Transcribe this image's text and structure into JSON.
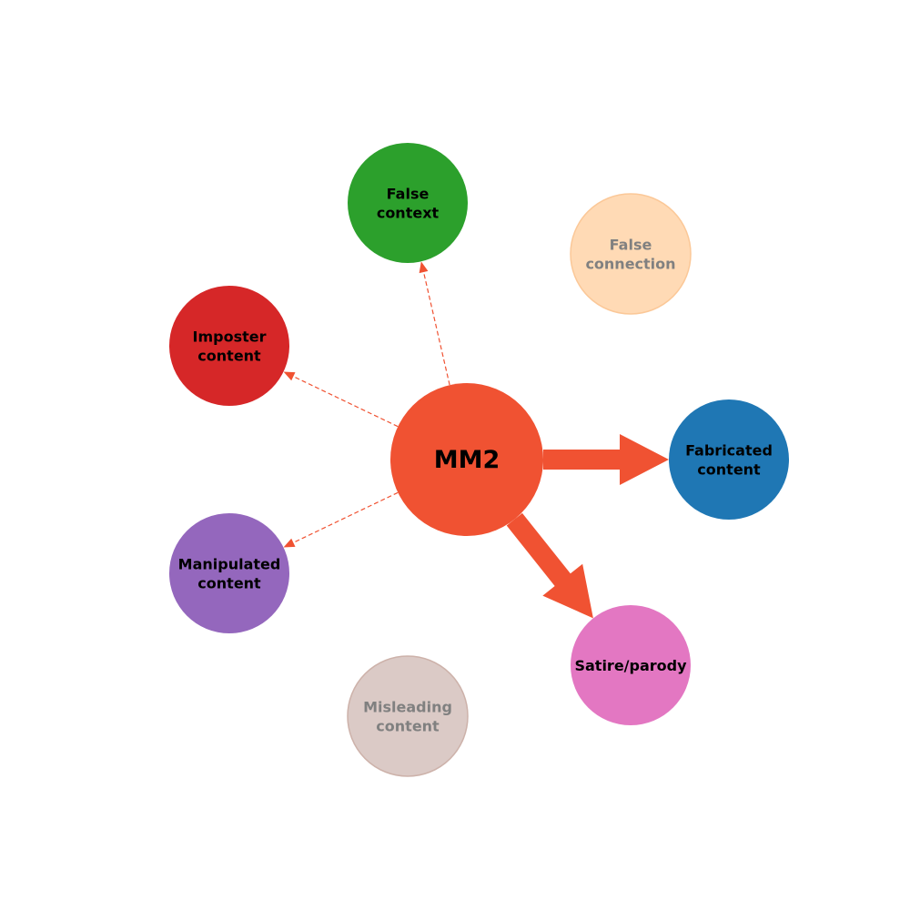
{
  "center": {
    "label": "MM2",
    "color": "#f05232"
  },
  "nodes": [
    {
      "id": "false-context",
      "lines": [
        "False",
        "context"
      ],
      "color": "#2ca02c",
      "text_color": "#000000",
      "faded": false
    },
    {
      "id": "false-connection",
      "lines": [
        "False",
        "connection"
      ],
      "color": "#ffdab5",
      "stroke": "#fbc898",
      "text_color": "#808080",
      "faded": true
    },
    {
      "id": "imposter-content",
      "lines": [
        "Imposter",
        "content"
      ],
      "color": "#d62728",
      "text_color": "#000000",
      "faded": false
    },
    {
      "id": "fabricated-content",
      "lines": [
        "Fabricated",
        "content"
      ],
      "color": "#1f77b4",
      "text_color": "#000000",
      "faded": false
    },
    {
      "id": "manipulated-content",
      "lines": [
        "Manipulated",
        "content"
      ],
      "color": "#9467bd",
      "text_color": "#000000",
      "faded": false
    },
    {
      "id": "satire-parody",
      "lines": [
        "Satire/parody"
      ],
      "color": "#e377c2",
      "text_color": "#000000",
      "faded": false
    },
    {
      "id": "misleading-content",
      "lines": [
        "Misleading",
        "content"
      ],
      "color": "#dbcac6",
      "stroke": "#cdb2aa",
      "text_color": "#808080",
      "faded": true
    }
  ],
  "edges": [
    {
      "to": "false-context",
      "style": "dashed"
    },
    {
      "to": "imposter-content",
      "style": "dashed"
    },
    {
      "to": "manipulated-content",
      "style": "dashed"
    },
    {
      "to": "fabricated-content",
      "style": "thick"
    },
    {
      "to": "satire-parody",
      "style": "thick"
    }
  ],
  "edge_color": "#f05232"
}
